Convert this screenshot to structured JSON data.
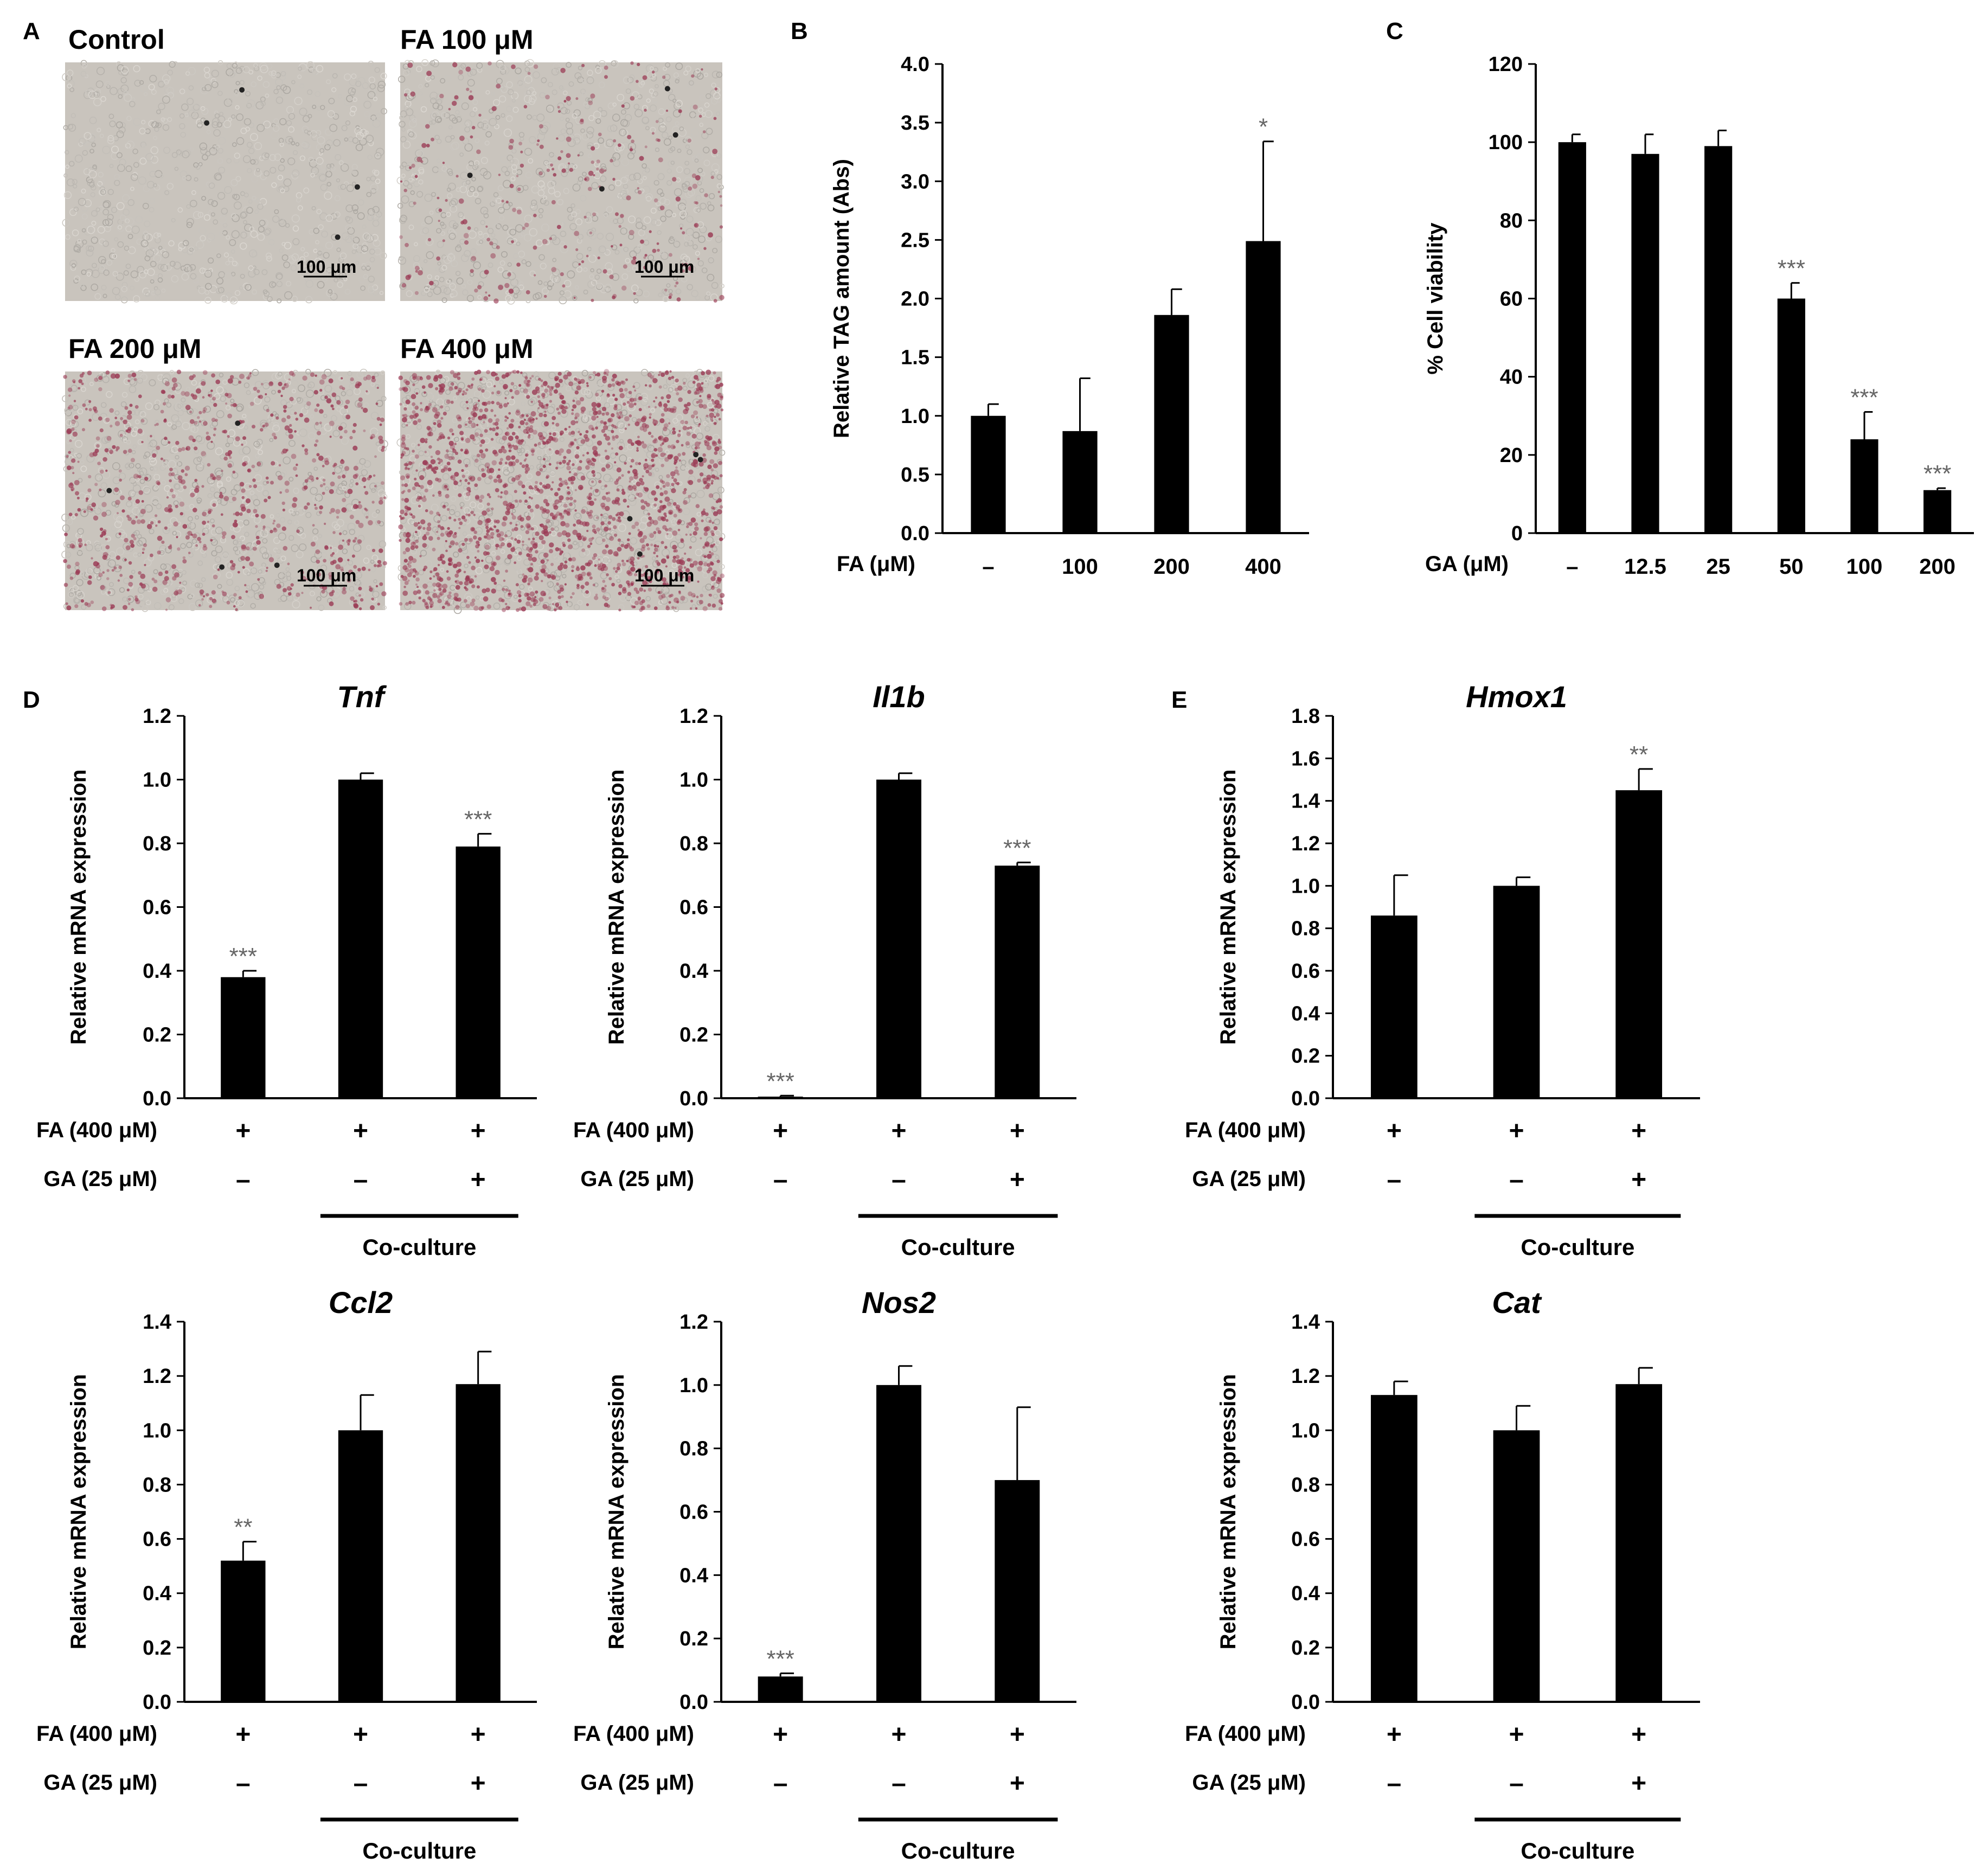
{
  "colors": {
    "bar": "#000000",
    "axis": "#000000",
    "sig": "#666666",
    "stain": "#9b3b55",
    "bg_field": "#c9c4bd"
  },
  "micrographs": {
    "panel_label": "A",
    "scale_bar": "100 μm",
    "images": [
      {
        "title": "Control",
        "stain_density": 0.0
      },
      {
        "title": "FA 100 μM",
        "stain_density": 0.12
      },
      {
        "title": "FA 200 μM",
        "stain_density": 0.35
      },
      {
        "title": "FA 400 μM",
        "stain_density": 0.85
      }
    ]
  },
  "chart_data": [
    {
      "id": "B",
      "panel_label": "B",
      "type": "bar",
      "title": "",
      "ylabel": "Relative TAG amount (Abs)",
      "xlabel": "FA (μM)",
      "categories": [
        "–",
        "100",
        "200",
        "400"
      ],
      "values": [
        1.0,
        0.87,
        1.86,
        2.49
      ],
      "errors": [
        0.1,
        0.45,
        0.22,
        0.85
      ],
      "significance": [
        "",
        "",
        "",
        "*"
      ],
      "ylim": [
        0,
        4.0
      ],
      "yticks": [
        "0.0",
        "0.5",
        "1.0",
        "1.5",
        "2.0",
        "2.5",
        "3.0",
        "3.5",
        "4.0"
      ]
    },
    {
      "id": "C",
      "panel_label": "C",
      "type": "bar",
      "title": "",
      "ylabel": "% Cell viability",
      "xlabel": "GA (μM)",
      "categories": [
        "–",
        "12.5",
        "25",
        "50",
        "100",
        "200"
      ],
      "values": [
        100,
        97,
        99,
        60,
        24,
        11
      ],
      "errors": [
        2,
        5,
        4,
        4,
        7,
        0.5
      ],
      "significance": [
        "",
        "",
        "",
        "***",
        "***",
        "***"
      ],
      "ylim": [
        0,
        120
      ],
      "yticks": [
        "0",
        "20",
        "40",
        "60",
        "80",
        "100",
        "120"
      ]
    },
    {
      "id": "Tnf",
      "panel_label": "D",
      "type": "bar",
      "title": "Tnf",
      "ylabel": "Relative mRNA expression",
      "conditions": [
        {
          "label": "FA (400 μM)",
          "signs": [
            "+",
            "+",
            "+"
          ]
        },
        {
          "label": "GA (25 μM)",
          "signs": [
            "–",
            "–",
            "+"
          ]
        }
      ],
      "group_label": "Co-culture",
      "values": [
        0.38,
        1.0,
        0.79
      ],
      "errors": [
        0.02,
        0.02,
        0.04
      ],
      "significance": [
        "***",
        "",
        "***"
      ],
      "ylim": [
        0,
        1.2
      ],
      "yticks": [
        "0.0",
        "0.2",
        "0.4",
        "0.6",
        "0.8",
        "1.0",
        "1.2"
      ]
    },
    {
      "id": "Il1b",
      "panel_label": "",
      "type": "bar",
      "title": "Il1b",
      "ylabel": "Relative mRNA expression",
      "conditions": [
        {
          "label": "FA (400 μM)",
          "signs": [
            "+",
            "+",
            "+"
          ]
        },
        {
          "label": "GA (25 μM)",
          "signs": [
            "–",
            "–",
            "+"
          ]
        }
      ],
      "group_label": "Co-culture",
      "values": [
        0.005,
        1.0,
        0.73
      ],
      "errors": [
        0.003,
        0.02,
        0.01
      ],
      "significance": [
        "***",
        "",
        "***"
      ],
      "ylim": [
        0,
        1.2
      ],
      "yticks": [
        "0.0",
        "0.2",
        "0.4",
        "0.6",
        "0.8",
        "1.0",
        "1.2"
      ]
    },
    {
      "id": "Hmox1",
      "panel_label": "E",
      "type": "bar",
      "title": "Hmox1",
      "ylabel": "Relative mRNA expression",
      "conditions": [
        {
          "label": "FA (400 μM)",
          "signs": [
            "+",
            "+",
            "+"
          ]
        },
        {
          "label": "GA (25 μM)",
          "signs": [
            "–",
            "–",
            "+"
          ]
        }
      ],
      "group_label": "Co-culture",
      "values": [
        0.86,
        1.0,
        1.45
      ],
      "errors": [
        0.19,
        0.04,
        0.1
      ],
      "significance": [
        "",
        "",
        "**"
      ],
      "ylim": [
        0,
        1.8
      ],
      "yticks": [
        "0.0",
        "0.2",
        "0.4",
        "0.6",
        "0.8",
        "1.0",
        "1.2",
        "1.4",
        "1.6",
        "1.8"
      ]
    },
    {
      "id": "Ccl2",
      "panel_label": "",
      "type": "bar",
      "title": "Ccl2",
      "ylabel": "Relative mRNA expression",
      "conditions": [
        {
          "label": "FA (400 μM)",
          "signs": [
            "+",
            "+",
            "+"
          ]
        },
        {
          "label": "GA (25 μM)",
          "signs": [
            "–",
            "–",
            "+"
          ]
        }
      ],
      "group_label": "Co-culture",
      "values": [
        0.52,
        1.0,
        1.17
      ],
      "errors": [
        0.07,
        0.13,
        0.12
      ],
      "significance": [
        "**",
        "",
        ""
      ],
      "ylim": [
        0,
        1.4
      ],
      "yticks": [
        "0.0",
        "0.2",
        "0.4",
        "0.6",
        "0.8",
        "1.0",
        "1.2",
        "1.4"
      ]
    },
    {
      "id": "Nos2",
      "panel_label": "",
      "type": "bar",
      "title": "Nos2",
      "ylabel": "Relative mRNA expression",
      "conditions": [
        {
          "label": "FA (400 μM)",
          "signs": [
            "+",
            "+",
            "+"
          ]
        },
        {
          "label": "GA (25 μM)",
          "signs": [
            "–",
            "–",
            "+"
          ]
        }
      ],
      "group_label": "Co-culture",
      "values": [
        0.08,
        1.0,
        0.7
      ],
      "errors": [
        0.01,
        0.06,
        0.23
      ],
      "significance": [
        "***",
        "",
        ""
      ],
      "ylim": [
        0,
        1.2
      ],
      "yticks": [
        "0.0",
        "0.2",
        "0.4",
        "0.6",
        "0.8",
        "1.0",
        "1.2"
      ]
    },
    {
      "id": "Cat",
      "panel_label": "",
      "type": "bar",
      "title": "Cat",
      "ylabel": "Relative mRNA expression",
      "conditions": [
        {
          "label": "FA (400 μM)",
          "signs": [
            "+",
            "+",
            "+"
          ]
        },
        {
          "label": "GA (25 μM)",
          "signs": [
            "–",
            "–",
            "+"
          ]
        }
      ],
      "group_label": "Co-culture",
      "values": [
        1.13,
        1.0,
        1.17
      ],
      "errors": [
        0.05,
        0.09,
        0.06
      ],
      "significance": [
        "",
        "",
        ""
      ],
      "ylim": [
        0,
        1.4
      ],
      "yticks": [
        "0.0",
        "0.2",
        "0.4",
        "0.6",
        "0.8",
        "1.0",
        "1.2",
        "1.4"
      ]
    }
  ]
}
